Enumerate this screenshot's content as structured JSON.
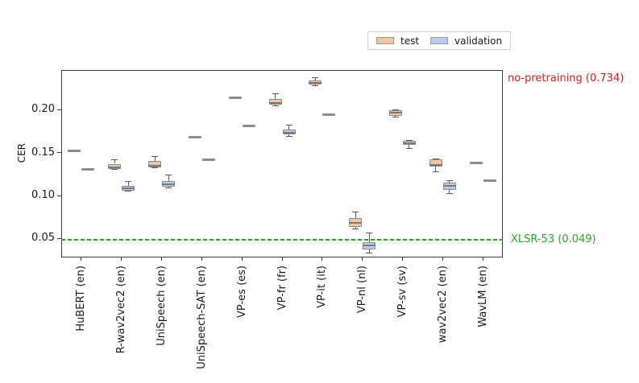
{
  "figure": {
    "ylabel": "CER",
    "annotations": {
      "no_pretraining": {
        "text": "no-pretraining (0.734)",
        "color": "#C92525"
      },
      "xlsr": {
        "text": "XLSR-53 (0.049)",
        "color": "#2CA12C"
      }
    }
  },
  "chart_data": {
    "type": "boxplot",
    "title": "",
    "xlabel": "",
    "ylabel": "CER",
    "ylim": [
      0.028,
      0.246
    ],
    "yticks": [
      0.05,
      0.1,
      0.15,
      0.2
    ],
    "grid": false,
    "legend_position": "top-right-outside",
    "categories": [
      "HuBERT (en)",
      "R-wav2vec2 (en)",
      "UniSpeech (en)",
      "UniSpeech-SAT (en)",
      "VP-es (es)",
      "VP-fr (fr)",
      "VP-it (it)",
      "VP-nl (nl)",
      "VP-sv (sv)",
      "wav2vec2 (en)",
      "WavLM (en)"
    ],
    "series": [
      {
        "name": "test",
        "color": "#F2C5A2",
        "boxes": [
          {
            "whislo": 0.151,
            "q1": 0.152,
            "med": 0.152,
            "q3": 0.153,
            "whishi": 0.153
          },
          {
            "whislo": 0.13,
            "q1": 0.131,
            "med": 0.133,
            "q3": 0.137,
            "whishi": 0.142
          },
          {
            "whislo": 0.132,
            "q1": 0.133,
            "med": 0.135,
            "q3": 0.14,
            "whishi": 0.145
          },
          {
            "whislo": 0.167,
            "q1": 0.167,
            "med": 0.168,
            "q3": 0.168,
            "whishi": 0.169
          },
          {
            "whislo": 0.21,
            "q1": 0.212,
            "med": 0.214,
            "q3": 0.216,
            "whishi": 0.217
          },
          {
            "whislo": 0.204,
            "q1": 0.206,
            "med": 0.208,
            "q3": 0.212,
            "whishi": 0.218
          },
          {
            "whislo": 0.228,
            "q1": 0.229,
            "med": 0.231,
            "q3": 0.234,
            "whishi": 0.237
          },
          {
            "whislo": 0.061,
            "q1": 0.064,
            "med": 0.068,
            "q3": 0.074,
            "whishi": 0.081
          },
          {
            "whislo": 0.191,
            "q1": 0.193,
            "med": 0.196,
            "q3": 0.199,
            "whishi": 0.2
          },
          {
            "whislo": 0.128,
            "q1": 0.134,
            "med": 0.136,
            "q3": 0.142,
            "whishi": 0.143
          },
          {
            "whislo": 0.138,
            "q1": 0.138,
            "med": 0.138,
            "q3": 0.139,
            "whishi": 0.139
          }
        ]
      },
      {
        "name": "validation",
        "color": "#B9CCEC",
        "boxes": [
          {
            "whislo": 0.13,
            "q1": 0.13,
            "med": 0.13,
            "q3": 0.131,
            "whishi": 0.131
          },
          {
            "whislo": 0.105,
            "q1": 0.106,
            "med": 0.108,
            "q3": 0.111,
            "whishi": 0.116
          },
          {
            "whislo": 0.109,
            "q1": 0.11,
            "med": 0.113,
            "q3": 0.117,
            "whishi": 0.124
          },
          {
            "whislo": 0.142,
            "q1": 0.142,
            "med": 0.142,
            "q3": 0.143,
            "whishi": 0.143
          },
          {
            "whislo": 0.18,
            "q1": 0.18,
            "med": 0.181,
            "q3": 0.181,
            "whishi": 0.181
          },
          {
            "whislo": 0.169,
            "q1": 0.171,
            "med": 0.173,
            "q3": 0.177,
            "whishi": 0.182
          },
          {
            "whislo": 0.194,
            "q1": 0.194,
            "med": 0.194,
            "q3": 0.195,
            "whishi": 0.195
          },
          {
            "whislo": 0.033,
            "q1": 0.037,
            "med": 0.042,
            "q3": 0.046,
            "whishi": 0.057
          },
          {
            "whislo": 0.155,
            "q1": 0.159,
            "med": 0.161,
            "q3": 0.164,
            "whishi": 0.164
          },
          {
            "whislo": 0.102,
            "q1": 0.107,
            "med": 0.111,
            "q3": 0.115,
            "whishi": 0.117
          },
          {
            "whislo": 0.117,
            "q1": 0.117,
            "med": 0.117,
            "q3": 0.118,
            "whishi": 0.118
          }
        ]
      }
    ],
    "reference_lines": [
      {
        "label": "no-pretraining (0.734)",
        "value": 0.734,
        "color": "#C92525",
        "style": "label-only"
      },
      {
        "label": "XLSR-53 (0.049)",
        "value": 0.049,
        "color": "#2CA12C",
        "style": "dashed"
      }
    ]
  }
}
